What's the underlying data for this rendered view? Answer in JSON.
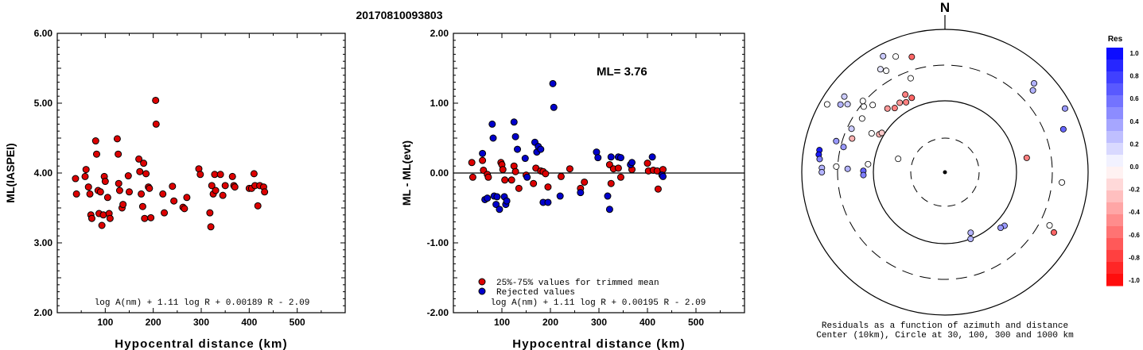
{
  "title": "20170810093803",
  "chart_data": [
    {
      "type": "scatter",
      "ylabel": "ML(IASPEI)",
      "xlabel": "Hypocentral distance (km)",
      "xlim": [
        0,
        600
      ],
      "ylim": [
        2.0,
        6.0
      ],
      "xticks": [
        "100",
        "200",
        "300",
        "400",
        "500"
      ],
      "yticks": [
        "2.00",
        "3.00",
        "4.00",
        "5.00",
        "6.00"
      ],
      "annotation": "log A(nm) + 1.11 log R + 0.00189 R - 2.09",
      "series": [
        {
          "color": "#dd0000",
          "points": [
            [
              38,
              3.92
            ],
            [
              40,
              3.7
            ],
            [
              58,
              3.95
            ],
            [
              60,
              4.05
            ],
            [
              65,
              3.8
            ],
            [
              68,
              3.7
            ],
            [
              70,
              3.4
            ],
            [
              72,
              3.35
            ],
            [
              80,
              4.46
            ],
            [
              82,
              4.27
            ],
            [
              85,
              3.75
            ],
            [
              87,
              3.42
            ],
            [
              90,
              3.73
            ],
            [
              93,
              3.25
            ],
            [
              96,
              3.4
            ],
            [
              98,
              3.95
            ],
            [
              100,
              3.88
            ],
            [
              105,
              3.65
            ],
            [
              108,
              3.42
            ],
            [
              110,
              3.35
            ],
            [
              125,
              4.49
            ],
            [
              127,
              4.27
            ],
            [
              128,
              3.85
            ],
            [
              130,
              3.75
            ],
            [
              135,
              3.5
            ],
            [
              137,
              3.55
            ],
            [
              148,
              3.96
            ],
            [
              150,
              3.73
            ],
            [
              170,
              4.2
            ],
            [
              172,
              4.02
            ],
            [
              175,
              3.7
            ],
            [
              178,
              3.52
            ],
            [
              180,
              4.14
            ],
            [
              182,
              3.35
            ],
            [
              185,
              3.99
            ],
            [
              190,
              3.8
            ],
            [
              192,
              3.78
            ],
            [
              195,
              3.36
            ],
            [
              205,
              5.04
            ],
            [
              206,
              4.7
            ],
            [
              220,
              3.7
            ],
            [
              223,
              3.43
            ],
            [
              240,
              3.81
            ],
            [
              243,
              3.6
            ],
            [
              262,
              3.51
            ],
            [
              265,
              3.49
            ],
            [
              270,
              3.65
            ],
            [
              295,
              4.06
            ],
            [
              298,
              3.98
            ],
            [
              318,
              3.43
            ],
            [
              320,
              3.23
            ],
            [
              322,
              3.82
            ],
            [
              325,
              3.7
            ],
            [
              328,
              3.98
            ],
            [
              330,
              3.75
            ],
            [
              340,
              3.98
            ],
            [
              345,
              3.68
            ],
            [
              350,
              3.82
            ],
            [
              365,
              3.95
            ],
            [
              368,
              3.82
            ],
            [
              370,
              3.8
            ],
            [
              400,
              3.78
            ],
            [
              405,
              3.78
            ],
            [
              410,
              3.99
            ],
            [
              412,
              3.82
            ],
            [
              418,
              3.53
            ],
            [
              422,
              3.82
            ],
            [
              430,
              3.8
            ],
            [
              432,
              3.73
            ]
          ]
        }
      ]
    },
    {
      "type": "scatter",
      "ylabel": "ML - ML(evt)",
      "xlabel": "Hypocentral distance (km)",
      "xlim": [
        0,
        600
      ],
      "ylim": [
        -2.0,
        2.0
      ],
      "xticks": [
        "100",
        "200",
        "300",
        "400",
        "500"
      ],
      "yticks": [
        "-2.00",
        "-1.00",
        "0.00",
        "1.00",
        "2.00"
      ],
      "ml_label": "ML= 3.76",
      "annotation": "log A(nm) + 1.11 log R + 0.00195 R - 2.09",
      "legend": [
        "25%-75% values for trimmed mean",
        "Rejected values"
      ],
      "series": [
        {
          "color": "#dd0000",
          "points": [
            [
              38,
              0.15
            ],
            [
              40,
              -0.06
            ],
            [
              60,
              0.18
            ],
            [
              62,
              0.04
            ],
            [
              70,
              -0.02
            ],
            [
              72,
              -0.06
            ],
            [
              98,
              0.15
            ],
            [
              100,
              0.12
            ],
            [
              102,
              0.05
            ],
            [
              106,
              -0.1
            ],
            [
              120,
              -0.1
            ],
            [
              125,
              0.1
            ],
            [
              128,
              0.02
            ],
            [
              135,
              -0.22
            ],
            [
              150,
              -0.03
            ],
            [
              165,
              -0.15
            ],
            [
              170,
              0.07
            ],
            [
              180,
              0.03
            ],
            [
              185,
              0.02
            ],
            [
              190,
              -0.01
            ],
            [
              195,
              -0.2
            ],
            [
              222,
              -0.05
            ],
            [
              240,
              0.06
            ],
            [
              262,
              -0.22
            ],
            [
              270,
              -0.13
            ],
            [
              322,
              0.12
            ],
            [
              325,
              -0.15
            ],
            [
              330,
              0.06
            ],
            [
              340,
              0.07
            ],
            [
              345,
              -0.06
            ],
            [
              368,
              0.05
            ],
            [
              400,
              0.14
            ],
            [
              402,
              0.03
            ],
            [
              412,
              0.04
            ],
            [
              420,
              0.03
            ],
            [
              422,
              -0.23
            ],
            [
              430,
              -0.02
            ],
            [
              432,
              0.05
            ]
          ]
        },
        {
          "color": "#0000cc",
          "points": [
            [
              60,
              0.28
            ],
            [
              65,
              -0.38
            ],
            [
              70,
              -0.36
            ],
            [
              80,
              0.7
            ],
            [
              82,
              0.5
            ],
            [
              84,
              -0.33
            ],
            [
              88,
              -0.45
            ],
            [
              90,
              -0.34
            ],
            [
              95,
              -0.52
            ],
            [
              105,
              -0.34
            ],
            [
              108,
              -0.45
            ],
            [
              110,
              -0.4
            ],
            [
              125,
              0.73
            ],
            [
              128,
              0.52
            ],
            [
              132,
              0.34
            ],
            [
              148,
              0.21
            ],
            [
              152,
              -0.06
            ],
            [
              168,
              0.44
            ],
            [
              172,
              0.3
            ],
            [
              175,
              0.38
            ],
            [
              180,
              0.34
            ],
            [
              185,
              -0.42
            ],
            [
              195,
              -0.42
            ],
            [
              205,
              1.28
            ],
            [
              207,
              0.94
            ],
            [
              220,
              -0.33
            ],
            [
              262,
              -0.28
            ],
            [
              295,
              0.3
            ],
            [
              298,
              0.22
            ],
            [
              318,
              -0.33
            ],
            [
              322,
              -0.52
            ],
            [
              325,
              0.23
            ],
            [
              340,
              0.23
            ],
            [
              345,
              0.22
            ],
            [
              365,
              0.12
            ],
            [
              368,
              0.15
            ],
            [
              410,
              0.23
            ],
            [
              430,
              -0.03
            ],
            [
              432,
              -0.05
            ]
          ]
        }
      ]
    }
  ],
  "polar": {
    "north": "N",
    "caption1": "Residuals as a function of azimuth and distance",
    "caption2": "Center (10km), Circle at 30, 100, 300 and 1000 km",
    "colorbar_title": "Res",
    "colorbar_labels": [
      "1.0",
      "0.8",
      "0.6",
      "0.4",
      "0.2",
      "0.0",
      "-0.2",
      "-0.4",
      "-0.6",
      "-0.8",
      "-1.0"
    ],
    "stations": [
      {
        "az": 337,
        "d": 0.88,
        "res": 0.0
      },
      {
        "az": 332,
        "d": 0.92,
        "res": 0.2
      },
      {
        "az": 330,
        "d": 0.82,
        "res": 0.0
      },
      {
        "az": 328,
        "d": 0.85,
        "res": 0.1
      },
      {
        "az": 344,
        "d": 0.84,
        "res": -0.6
      },
      {
        "az": 340,
        "d": 0.7,
        "res": 0.0
      },
      {
        "az": 45,
        "d": 0.88,
        "res": 0.3
      },
      {
        "az": 47,
        "d": 0.84,
        "res": 0.3
      },
      {
        "az": 62,
        "d": 0.95,
        "res": 0.4
      },
      {
        "az": 70,
        "d": 0.88,
        "res": 0.6
      },
      {
        "az": 95,
        "d": 0.82,
        "res": 0.0
      },
      {
        "az": 80,
        "d": 0.58,
        "res": -0.5
      },
      {
        "az": 117,
        "d": 0.82,
        "res": 0.0
      },
      {
        "az": 119,
        "d": 0.87,
        "res": -0.6
      },
      {
        "az": 132,
        "d": 0.56,
        "res": 0.4
      },
      {
        "az": 135,
        "d": 0.55,
        "res": 0.4
      },
      {
        "az": 157,
        "d": 0.46,
        "res": 0.3
      },
      {
        "az": 159,
        "d": 0.5,
        "res": 0.3
      },
      {
        "az": 300,
        "d": 0.95,
        "res": 0.0
      },
      {
        "az": 303,
        "d": 0.87,
        "res": 0.3
      },
      {
        "az": 305,
        "d": 0.83,
        "res": 0.2
      },
      {
        "az": 307,
        "d": 0.88,
        "res": 0.2
      },
      {
        "az": 309,
        "d": 0.73,
        "res": 0.0
      },
      {
        "az": 311,
        "d": 0.76,
        "res": 0.0
      },
      {
        "az": 313,
        "d": 0.69,
        "res": 0.0
      },
      {
        "az": 295,
        "d": 0.72,
        "res": 0.2
      },
      {
        "az": 290,
        "d": 0.69,
        "res": -0.3
      },
      {
        "az": 318,
        "d": 0.6,
        "res": -0.4
      },
      {
        "az": 322,
        "d": 0.57,
        "res": -0.5
      },
      {
        "az": 327,
        "d": 0.58,
        "res": -0.4
      },
      {
        "az": 331,
        "d": 0.56,
        "res": -0.5
      },
      {
        "az": 333,
        "d": 0.61,
        "res": -0.5
      },
      {
        "az": 336,
        "d": 0.57,
        "res": -0.6
      },
      {
        "az": 303,
        "d": 0.69,
        "res": 0.0
      },
      {
        "az": 298,
        "d": 0.58,
        "res": 0.0
      },
      {
        "az": 300,
        "d": 0.53,
        "res": -0.3
      },
      {
        "az": 302,
        "d": 0.52,
        "res": -0.2
      },
      {
        "az": 286,
        "d": 0.79,
        "res": 0.4
      },
      {
        "az": 284,
        "d": 0.73,
        "res": 0.4
      },
      {
        "az": 280,
        "d": 0.89,
        "res": 0.9
      },
      {
        "az": 278,
        "d": 0.89,
        "res": 0.9
      },
      {
        "az": 276,
        "d": 0.88,
        "res": 0.5
      },
      {
        "az": 272,
        "d": 0.86,
        "res": 0.3
      },
      {
        "az": 270,
        "d": 0.86,
        "res": 0.3
      },
      {
        "az": 273,
        "d": 0.76,
        "res": 0.0
      },
      {
        "az": 271,
        "d": 0.57,
        "res": 0.6
      },
      {
        "az": 268,
        "d": 0.57,
        "res": 0.5
      },
      {
        "az": 276,
        "d": 0.54,
        "res": 0.0
      },
      {
        "az": 272,
        "d": 0.68,
        "res": 0.3
      },
      {
        "az": 286,
        "d": 0.34,
        "res": 0.0
      }
    ]
  }
}
